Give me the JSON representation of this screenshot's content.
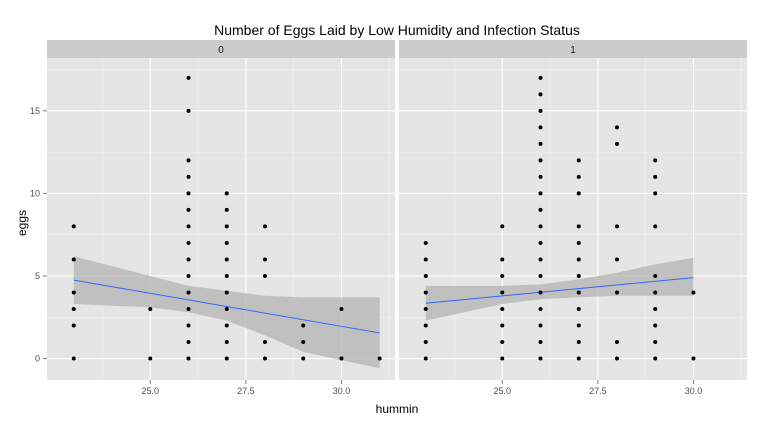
{
  "chart_data": {
    "type": "scatter",
    "title": "Number of Eggs Laid by Low Humidity and Infection Status",
    "xlabel": "hummin",
    "ylabel": "eggs",
    "xlim": [
      22.3,
      31.4
    ],
    "ylim": [
      -1.3,
      18.2
    ],
    "x_ticks": [
      25.0,
      27.5,
      30.0
    ],
    "x_tick_labels": [
      "25.0",
      "27.5",
      "30.0"
    ],
    "y_ticks": [
      0,
      5,
      10,
      15
    ],
    "y_tick_labels": [
      "0",
      "5",
      "10",
      "15"
    ],
    "grid": true,
    "colors": {
      "panel": "#e5e5e5",
      "strip": "#cccccc",
      "point": "#000000",
      "line": "#3366ff",
      "band": "#b3b3b3"
    },
    "panels": [
      {
        "strip": "0",
        "points": [
          [
            23,
            0
          ],
          [
            23,
            2
          ],
          [
            23,
            3
          ],
          [
            23,
            4
          ],
          [
            23,
            6
          ],
          [
            23,
            8
          ],
          [
            25,
            0
          ],
          [
            25,
            3
          ],
          [
            26,
            0
          ],
          [
            26,
            1
          ],
          [
            26,
            2
          ],
          [
            26,
            3
          ],
          [
            26,
            4
          ],
          [
            26,
            5
          ],
          [
            26,
            6
          ],
          [
            26,
            7
          ],
          [
            26,
            8
          ],
          [
            26,
            9
          ],
          [
            26,
            10
          ],
          [
            26,
            11
          ],
          [
            26,
            12
          ],
          [
            26,
            15
          ],
          [
            26,
            17
          ],
          [
            27,
            0
          ],
          [
            27,
            1
          ],
          [
            27,
            2
          ],
          [
            27,
            3
          ],
          [
            27,
            4
          ],
          [
            27,
            5
          ],
          [
            27,
            6
          ],
          [
            27,
            7
          ],
          [
            27,
            8
          ],
          [
            27,
            9
          ],
          [
            27,
            10
          ],
          [
            28,
            0
          ],
          [
            28,
            1
          ],
          [
            28,
            5
          ],
          [
            28,
            6
          ],
          [
            28,
            8
          ],
          [
            29,
            0
          ],
          [
            29,
            1
          ],
          [
            29,
            2
          ],
          [
            30,
            0
          ],
          [
            30,
            3
          ],
          [
            31,
            0
          ]
        ],
        "fit": {
          "x": [
            23,
            31
          ],
          "y": [
            4.75,
            1.55
          ]
        },
        "band_upper": [
          [
            23,
            6.2
          ],
          [
            25,
            5.0
          ],
          [
            26,
            4.4
          ],
          [
            27,
            4.1
          ],
          [
            28,
            3.8
          ],
          [
            29,
            3.7
          ],
          [
            31,
            3.7
          ]
        ],
        "band_lower": [
          [
            23,
            3.3
          ],
          [
            25,
            3.1
          ],
          [
            26,
            2.8
          ],
          [
            27,
            2.3
          ],
          [
            28,
            1.4
          ],
          [
            29,
            0.4
          ],
          [
            31,
            -0.6
          ]
        ]
      },
      {
        "strip": "1",
        "points": [
          [
            23,
            0
          ],
          [
            23,
            1
          ],
          [
            23,
            2
          ],
          [
            23,
            3
          ],
          [
            23,
            4
          ],
          [
            23,
            5
          ],
          [
            23,
            6
          ],
          [
            23,
            7
          ],
          [
            25,
            0
          ],
          [
            25,
            1
          ],
          [
            25,
            2
          ],
          [
            25,
            3
          ],
          [
            25,
            4
          ],
          [
            25,
            5
          ],
          [
            25,
            6
          ],
          [
            25,
            8
          ],
          [
            26,
            0
          ],
          [
            26,
            1
          ],
          [
            26,
            2
          ],
          [
            26,
            3
          ],
          [
            26,
            4
          ],
          [
            26,
            5
          ],
          [
            26,
            6
          ],
          [
            26,
            7
          ],
          [
            26,
            8
          ],
          [
            26,
            9
          ],
          [
            26,
            10
          ],
          [
            26,
            11
          ],
          [
            26,
            12
          ],
          [
            26,
            13
          ],
          [
            26,
            14
          ],
          [
            26,
            15
          ],
          [
            26,
            16
          ],
          [
            26,
            17
          ],
          [
            27,
            0
          ],
          [
            27,
            1
          ],
          [
            27,
            2
          ],
          [
            27,
            3
          ],
          [
            27,
            4
          ],
          [
            27,
            5
          ],
          [
            27,
            6
          ],
          [
            27,
            7
          ],
          [
            27,
            8
          ],
          [
            27,
            10
          ],
          [
            27,
            11
          ],
          [
            27,
            12
          ],
          [
            28,
            0
          ],
          [
            28,
            1
          ],
          [
            28,
            4
          ],
          [
            28,
            6
          ],
          [
            28,
            8
          ],
          [
            28,
            13
          ],
          [
            28,
            14
          ],
          [
            29,
            0
          ],
          [
            29,
            1
          ],
          [
            29,
            2
          ],
          [
            29,
            3
          ],
          [
            29,
            4
          ],
          [
            29,
            5
          ],
          [
            29,
            8
          ],
          [
            29,
            10
          ],
          [
            29,
            11
          ],
          [
            29,
            12
          ],
          [
            30,
            0
          ],
          [
            30,
            4
          ]
        ],
        "fit": {
          "x": [
            23,
            30
          ],
          "y": [
            3.35,
            4.9
          ]
        },
        "band_upper": [
          [
            23,
            4.4
          ],
          [
            25,
            4.4
          ],
          [
            26,
            4.5
          ],
          [
            27,
            4.8
          ],
          [
            28,
            5.2
          ],
          [
            29,
            5.7
          ],
          [
            30,
            6.1
          ]
        ],
        "band_lower": [
          [
            23,
            2.3
          ],
          [
            25,
            3.3
          ],
          [
            26,
            3.6
          ],
          [
            27,
            3.7
          ],
          [
            28,
            3.8
          ],
          [
            29,
            3.8
          ],
          [
            30,
            3.8
          ]
        ]
      }
    ]
  }
}
